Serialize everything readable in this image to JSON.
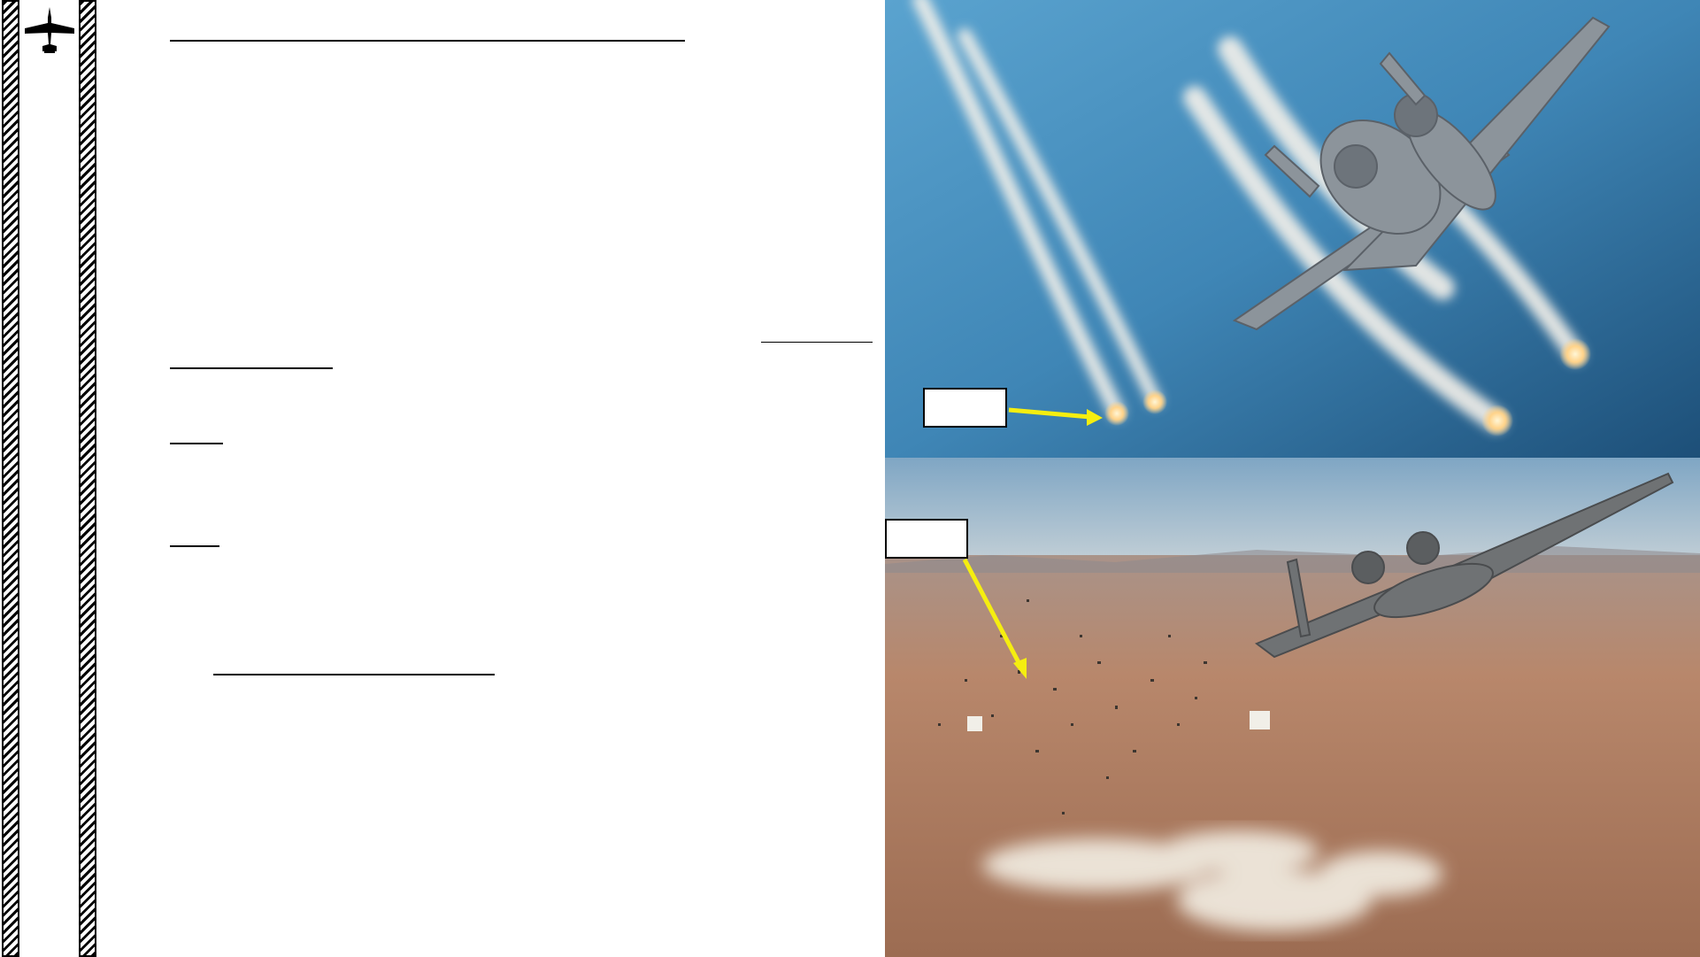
{
  "rail": {
    "logo_icon": "aircraft-silhouette-icon"
  },
  "photos": {
    "top": {
      "subject": "a10-dispensing-flares",
      "colors": {
        "sky_top": "#3f86b6",
        "sky_bottom": "#1d4f78",
        "trail": "#f4f1ea",
        "flare": "#ffd38a"
      }
    },
    "bottom": {
      "subject": "a10-dispensing-chaff",
      "colors": {
        "sky": "#8fb0c9",
        "ground": "#b8876b",
        "smoke": "#efe8dd"
      }
    }
  },
  "callouts": {
    "flare_label": "",
    "chaff_label": "",
    "arrow_color": "#f5ee10"
  }
}
